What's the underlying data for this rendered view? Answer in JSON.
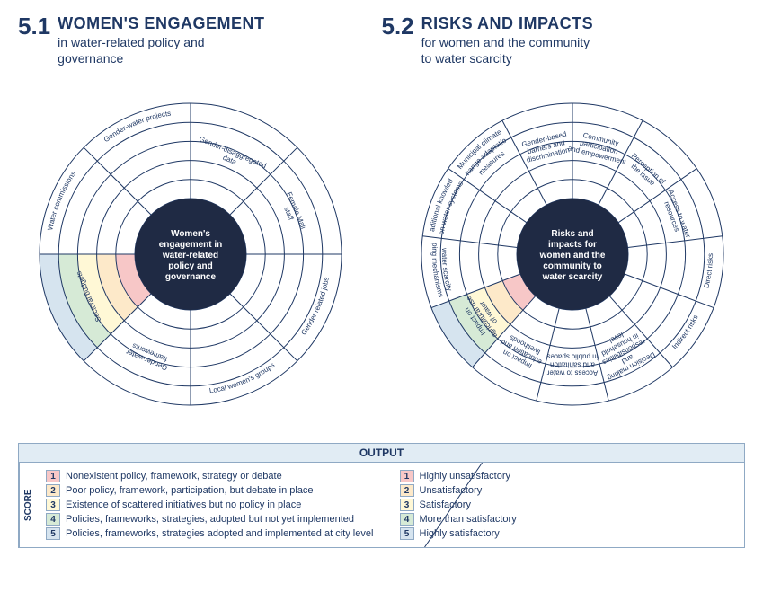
{
  "headers": {
    "left": {
      "num": "5.1",
      "title": "WOMEN'S ENGAGEMENT",
      "sub1": "in water-related policy and",
      "sub2": "governance"
    },
    "right": {
      "num": "5.2",
      "title": "RISKS AND IMPACTS",
      "sub1": "for women and the community",
      "sub2": "to water scarcity"
    }
  },
  "colors": {
    "stroke": "#1f3864",
    "centerFill": "#1f2a44",
    "centerText": "#ffffff",
    "ringFills": [
      "#f7c7c7",
      "#fde9c9",
      "#fff8d6",
      "#d6ead6",
      "#d6e4ef"
    ],
    "legendHeaderBg": "#e1ecf4",
    "scoreBoxColors": [
      "#f7c7c7",
      "#fde9c9",
      "#fff8d6",
      "#d6ead6",
      "#d6e4ef"
    ]
  },
  "diagram1": {
    "center": [
      "Women's",
      "engagement in",
      "water-related",
      "policy and",
      "governance"
    ],
    "centerRadius": 62,
    "outerRadius": 168,
    "rings": 5,
    "highlightWedge": 5,
    "labels": [
      {
        "text": "Gender-disaggregated data",
        "wedge": 0,
        "mode": "radial"
      },
      {
        "text": "Female Mali staff",
        "wedge": 1,
        "mode": "radial"
      },
      {
        "text": "Gender related jobs",
        "wedge": 2,
        "mode": "outer-arc"
      },
      {
        "text": "Local women's groups",
        "wedge": 3,
        "mode": "outer-arc"
      },
      {
        "text": "Gender-water frameworks",
        "wedge": 4,
        "mode": "radial"
      },
      {
        "text": "Sectoral budgets",
        "wedge": 5,
        "mode": "radial"
      },
      {
        "text": "Water commissions",
        "wedge": 6,
        "mode": "outer-arc"
      },
      {
        "text": "Gender-water projects",
        "wedge": 7,
        "mode": "outer-arc"
      }
    ]
  },
  "diagram2": {
    "center": [
      "Risks and",
      "impacts for",
      "women and the",
      "community to",
      "water scarcity"
    ],
    "centerRadius": 62,
    "outerRadius": 168,
    "rings": 5,
    "highlightWedge": 8,
    "labels": [
      {
        "text": "Community participation and empowerment",
        "wedge": 0,
        "mode": "radial"
      },
      {
        "text": "Perception of the issue",
        "wedge": 1,
        "mode": "radial"
      },
      {
        "text": "Access to water resources",
        "wedge": 2,
        "mode": "radial"
      },
      {
        "text": "Direct risks",
        "wedge": 3,
        "mode": "outer-arc"
      },
      {
        "text": "Indirect risks",
        "wedge": 4,
        "mode": "outer-arc"
      },
      {
        "text": "Decision making and responsibilities in household level",
        "wedge": 5,
        "mode": "radial"
      },
      {
        "text": "Access to water and sanitation in public spaces",
        "wedge": 6,
        "mode": "radial"
      },
      {
        "text": "Impact on education and livelihoods",
        "wedge": 7,
        "mode": "radial"
      },
      {
        "text": "Impact on agricultural use of water",
        "wedge": 8,
        "mode": "radial"
      },
      {
        "text": "Coping mechanisms for water scarcity",
        "wedge": 9,
        "mode": "outer-arc"
      },
      {
        "text": "Traditional knowledge on water systems",
        "wedge": 10,
        "mode": "outer-arc"
      },
      {
        "text": "Municipal climate change adaptation measures",
        "wedge": 11,
        "mode": "outer-arc"
      },
      {
        "text": "Gender-based barriers and discrimination",
        "wedge": 12,
        "mode": "radial"
      }
    ]
  },
  "legend": {
    "header": "OUTPUT",
    "scoreLabel": "SCORE",
    "left": [
      {
        "n": "1",
        "text": "Nonexistent policy, framework, strategy or debate"
      },
      {
        "n": "2",
        "text": "Poor policy, framework, participation, but debate in place"
      },
      {
        "n": "3",
        "text": "Existence of scattered initiatives but no policy in place"
      },
      {
        "n": "4",
        "text": "Policies, frameworks, strategies, adopted but not yet implemented"
      },
      {
        "n": "5",
        "text": "Policies, frameworks, strategies adopted and implemented at city level"
      }
    ],
    "right": [
      {
        "n": "1",
        "text": "Highly unsatisfactory"
      },
      {
        "n": "2",
        "text": "Unsatisfactory"
      },
      {
        "n": "3",
        "text": "Satisfactory"
      },
      {
        "n": "4",
        "text": "More than satisfactory"
      },
      {
        "n": "5",
        "text": "Highly satisfactory"
      }
    ]
  }
}
